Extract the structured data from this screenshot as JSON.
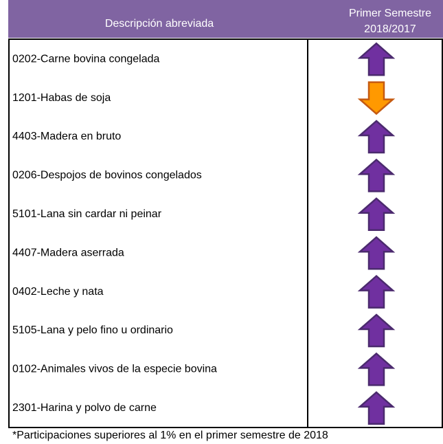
{
  "table": {
    "header": {
      "description": "Descripción abreviada",
      "period": [
        "Primer Semestre",
        "2018/2017"
      ]
    },
    "rows": [
      {
        "description": "0202-Carne bovina congelada",
        "trend": "up"
      },
      {
        "description": "1201-Habas de soja",
        "trend": "down"
      },
      {
        "description": "4403-Madera en bruto",
        "trend": "up"
      },
      {
        "description": "0206-Despojos de bovinos congelados",
        "trend": "up"
      },
      {
        "description": "5101-Lana sin cardar ni peinar",
        "trend": "up"
      },
      {
        "description": "4407-Madera aserrada",
        "trend": "up"
      },
      {
        "description": "0402-Leche y nata",
        "trend": "up"
      },
      {
        "description": "5105-Lana y pelo fino u ordinario",
        "trend": "up"
      },
      {
        "description": "0102-Animales vivos de la especie bovina",
        "trend": "up"
      },
      {
        "description": "2301-Harina y polvo de carne",
        "trend": "up"
      }
    ],
    "footnote": "*Participaciones superiores al 1% en el primer semestre de 2018"
  }
}
